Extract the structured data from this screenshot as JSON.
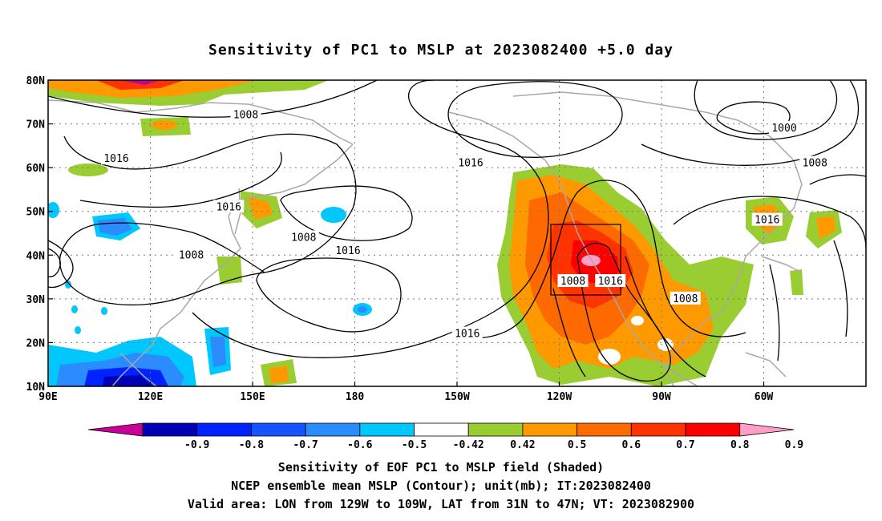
{
  "title": "Sensitivity of PC1 to MSLP at 2023082400 +5.0 day",
  "map": {
    "lon_ticks": [
      "90E",
      "120E",
      "150E",
      "180",
      "150W",
      "120W",
      "90W",
      "60W"
    ],
    "lat_ticks": [
      "80N",
      "70N",
      "60N",
      "50N",
      "40N",
      "30N",
      "20N",
      "10N"
    ],
    "lon_range": [
      90,
      330
    ],
    "lat_range": [
      10,
      80
    ],
    "grid": true,
    "valid_area_box": {
      "lon": [
        231,
        251
      ],
      "lat": [
        31,
        47
      ]
    },
    "contour_labels": [
      {
        "text": "1008",
        "lon": 148,
        "lat": 72
      },
      {
        "text": "1016",
        "lon": 110,
        "lat": 62
      },
      {
        "text": "1016",
        "lon": 143,
        "lat": 51
      },
      {
        "text": "1008",
        "lon": 132,
        "lat": 40
      },
      {
        "text": "1008",
        "lon": 165,
        "lat": 44
      },
      {
        "text": "1016",
        "lon": 178,
        "lat": 41
      },
      {
        "text": "1016",
        "lon": 214,
        "lat": 61
      },
      {
        "text": "1016",
        "lon": 213,
        "lat": 22
      },
      {
        "text": "1008",
        "lon": 244,
        "lat": 34
      },
      {
        "text": "1016",
        "lon": 255,
        "lat": 34
      },
      {
        "text": "1008",
        "lon": 277,
        "lat": 30
      },
      {
        "text": "1000",
        "lon": 306,
        "lat": 69
      },
      {
        "text": "1008",
        "lon": 315,
        "lat": 61
      },
      {
        "text": "1016",
        "lon": 301,
        "lat": 48
      }
    ]
  },
  "colorbar": {
    "labels": [
      "-0.9",
      "-0.8",
      "-0.7",
      "-0.6",
      "-0.5",
      "-0.42",
      "0.42",
      "0.5",
      "0.6",
      "0.7",
      "0.8",
      "0.9"
    ],
    "colors": [
      "#0000b4",
      "#0022ff",
      "#1455ff",
      "#2a8cff",
      "#00c8ff",
      "#ffffff",
      "#9acd32",
      "#ff9900",
      "#ff6a00",
      "#ff3300",
      "#ff0000"
    ],
    "low_end_color": "#c80096",
    "high_end_color": "#ff9ec8"
  },
  "captions": [
    "Sensitivity of EOF PC1 to MSLP field (Shaded)",
    "NCEP ensemble mean MSLP (Contour); unit(mb); IT:2023082400",
    "Valid area: LON from 129W to 109W, LAT from 31N to 47N; VT: 2023082900"
  ],
  "shade_colors": {
    "green": "#9acd32",
    "orange": "#ff9900",
    "dark_orange": "#ff6a00",
    "red_orange": "#ff3300",
    "red": "#ff0000",
    "pink": "#ff9ec8",
    "light_blue": "#00c8ff",
    "blue": "#2a8cff",
    "dark_blue": "#0022ff",
    "coast": "#a8a8a8",
    "contour": "#000000"
  }
}
